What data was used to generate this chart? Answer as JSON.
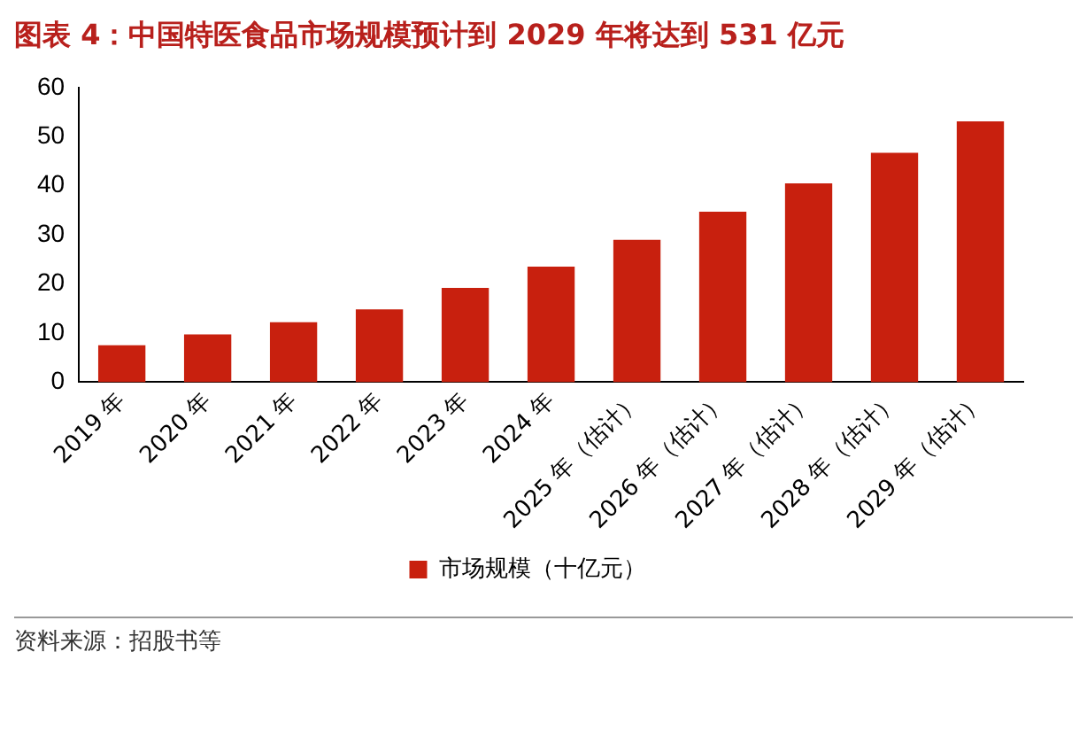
{
  "chart_data": {
    "type": "bar",
    "title": "图表 4：中国特医食品市场规模预计到 2029 年将达到 531 亿元",
    "categories": [
      "2019 年",
      "2020 年",
      "2021 年",
      "2022 年",
      "2023 年",
      "2024 年",
      "2025 年（估计）",
      "2026 年（估计）",
      "2027 年（估计）",
      "2028 年（估计）",
      "2029 年（估计）"
    ],
    "series": [
      {
        "name": "市场规模（十亿元）",
        "color": "#c8200e",
        "values": [
          7.5,
          9.7,
          12.2,
          14.8,
          19.2,
          23.5,
          29,
          34.7,
          40.5,
          46.7,
          53.1
        ]
      }
    ],
    "ylim": [
      0,
      60
    ],
    "yticks": [
      0,
      10,
      20,
      30,
      40,
      50,
      60
    ],
    "grid": false,
    "legend": "bottom",
    "annotations": [
      "资料来源：招股书等"
    ]
  }
}
